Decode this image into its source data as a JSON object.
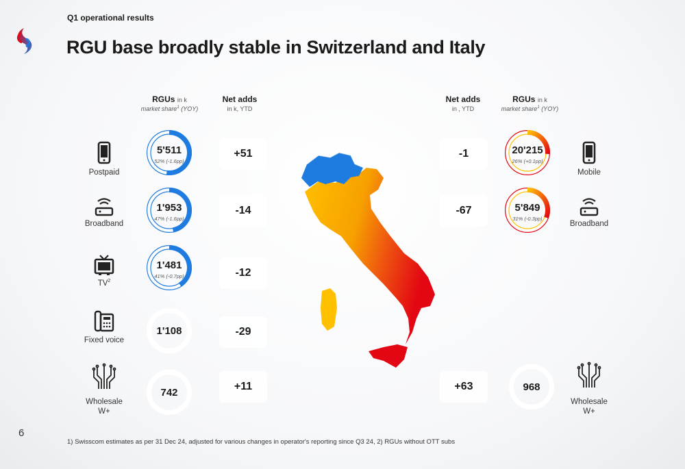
{
  "header": {
    "section": "Q1 operational results",
    "title": "RGU base broadly stable in Switzerland and Italy",
    "logo": "swisscom-logo"
  },
  "page_number": "6",
  "footnote": "1) Swisscom estimates as per 31 Dec 24, adjusted for various changes in operator's reporting since Q3 24, 2) RGUs without OTT subs",
  "colors": {
    "switzerland": "#1E7BE0",
    "italy_low": "#FFC000",
    "italy_high": "#E30613",
    "ring_empty": "#ffffff"
  },
  "left": {
    "rgu_head": {
      "title": "RGUs",
      "unit": "in k",
      "sub": "market share",
      "sup": "1",
      "sub_tail": "(YOY)"
    },
    "net_head": {
      "title": "Net adds",
      "unit": "in k, YTD"
    },
    "rows": [
      {
        "icon": "smartphone-icon",
        "label": "Postpaid",
        "value": "5'511",
        "share": "52% (-1.6pp)",
        "share_fraction": 0.52,
        "net": "+51"
      },
      {
        "icon": "router-icon",
        "label": "Broadband",
        "value": "1'953",
        "share": "47% (-1.6pp)",
        "share_fraction": 0.47,
        "net": "-14"
      },
      {
        "icon": "tv-icon",
        "label": "TV",
        "label_sup": "2",
        "value": "1'481",
        "share": "41% (-0.7pp)",
        "share_fraction": 0.41,
        "net": "-12"
      },
      {
        "icon": "fixed-phone-icon",
        "label": "Fixed voice",
        "value": "1'108",
        "share": "",
        "net": "-29"
      },
      {
        "icon": "wholesale-network-icon",
        "label": "Wholesale",
        "label2": "W+",
        "value": "742",
        "share": "",
        "net": "+11"
      }
    ]
  },
  "right": {
    "net_head": {
      "title": "Net adds",
      "unit": "in , YTD"
    },
    "rgu_head": {
      "title": "RGUs",
      "unit": "in k",
      "sub": "market share",
      "sup": "1",
      "sub_tail": "(YOY)"
    },
    "rows": [
      {
        "icon": "smartphone-icon",
        "label": "Mobile",
        "value": "20'215",
        "share": "26% (+0.1pp)",
        "share_fraction": 0.26,
        "net": "-1"
      },
      {
        "icon": "router-icon",
        "label": "Broadband",
        "value": "5'849",
        "share": "31% (-0.3pp)",
        "share_fraction": 0.31,
        "net": "-67"
      },
      {
        "icon": "wholesale-network-icon",
        "label": "Wholesale",
        "label2": "W+",
        "value": "968",
        "share": "",
        "net": "+63"
      }
    ]
  }
}
